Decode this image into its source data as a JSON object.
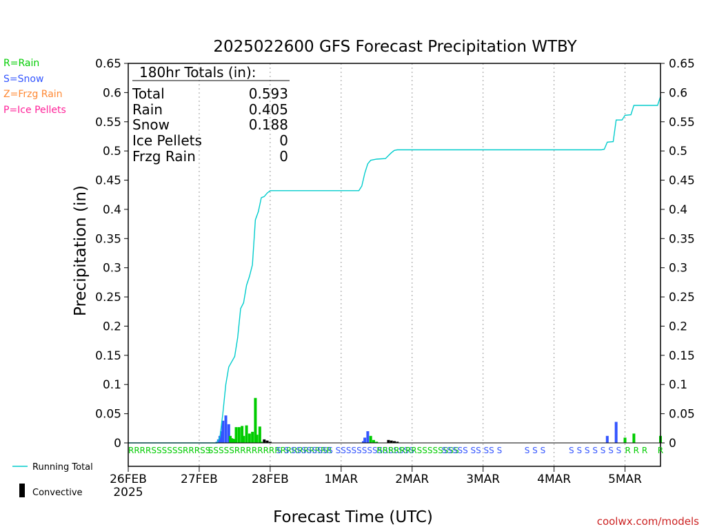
{
  "chart_data": {
    "type": "bar",
    "title": "2025022600 GFS Forecast Precipitation WTBY",
    "ylabel": "Precipitation (in)",
    "xlabel": "Forecast Time (UTC)",
    "ylim": [
      0,
      0.65
    ],
    "xlim_hours": [
      0,
      180
    ],
    "y_ticks": [
      "0",
      "0.05",
      "0.1",
      "0.15",
      "0.2",
      "0.25",
      "0.3",
      "0.35",
      "0.4",
      "0.45",
      "0.5",
      "0.55",
      "0.6",
      "0.65"
    ],
    "y_tick_values": [
      0,
      0.05,
      0.1,
      0.15,
      0.2,
      0.25,
      0.3,
      0.35,
      0.4,
      0.45,
      0.5,
      0.55,
      0.6,
      0.65
    ],
    "x_ticks": [
      {
        "label": "26FEB",
        "hour": 0
      },
      {
        "label": "27FEB",
        "hour": 24
      },
      {
        "label": "28FEB",
        "hour": 48
      },
      {
        "label": "1MAR",
        "hour": 72
      },
      {
        "label": "2MAR",
        "hour": 96
      },
      {
        "label": "3MAR",
        "hour": 120
      },
      {
        "label": "4MAR",
        "hour": 144
      },
      {
        "label": "5MAR",
        "hour": 168
      }
    ],
    "year_label": "2025",
    "grid": "dotted-vertical",
    "legend_types": [
      {
        "label": "R=Rain",
        "color": "#00cc00"
      },
      {
        "label": "S=Snow",
        "color": "#3355ff"
      },
      {
        "label": "Z=Frzg Rain",
        "color": "#ff8833"
      },
      {
        "label": "P=Ice Pellets",
        "color": "#ff2299"
      }
    ],
    "legend_series": {
      "running_total": {
        "label": "Running Total",
        "color": "#00cccc"
      },
      "convective": {
        "label": "Convective",
        "color": "#000000"
      }
    },
    "totals": {
      "header": "180hr Totals (in):",
      "rows": [
        {
          "label": "Total",
          "value": "0.593"
        },
        {
          "label": "Rain",
          "value": "0.405"
        },
        {
          "label": "Snow",
          "value": "0.188"
        },
        {
          "label": "Ice Pellets",
          "value": "0"
        },
        {
          "label": "Frzg Rain",
          "value": "0"
        }
      ]
    },
    "bars": [
      {
        "hour": 30.0,
        "value": 0.002,
        "type": "S"
      },
      {
        "hour": 30.5,
        "value": 0.006,
        "type": "S"
      },
      {
        "hour": 31.0,
        "value": 0.012,
        "type": "S"
      },
      {
        "hour": 31.5,
        "value": 0.02,
        "type": "S"
      },
      {
        "hour": 32.0,
        "value": 0.038,
        "type": "S"
      },
      {
        "hour": 33.0,
        "value": 0.047,
        "type": "S"
      },
      {
        "hour": 34.0,
        "value": 0.032,
        "type": "S"
      },
      {
        "hour": 34.5,
        "value": 0.012,
        "type": "R"
      },
      {
        "hour": 35.0,
        "value": 0.008,
        "type": "R"
      },
      {
        "hour": 35.5,
        "value": 0.007,
        "type": "R"
      },
      {
        "hour": 36.0,
        "value": 0.006,
        "type": "R"
      },
      {
        "hour": 36.5,
        "value": 0.027,
        "type": "R"
      },
      {
        "hour": 37.5,
        "value": 0.027,
        "type": "R"
      },
      {
        "hour": 38.5,
        "value": 0.029,
        "type": "R"
      },
      {
        "hour": 39.0,
        "value": 0.012,
        "type": "R"
      },
      {
        "hour": 40.0,
        "value": 0.03,
        "type": "R"
      },
      {
        "hour": 41.0,
        "value": 0.016,
        "type": "R"
      },
      {
        "hour": 42.0,
        "value": 0.019,
        "type": "R"
      },
      {
        "hour": 43.0,
        "value": 0.077,
        "type": "R"
      },
      {
        "hour": 43.5,
        "value": 0.014,
        "type": "R"
      },
      {
        "hour": 44.5,
        "value": 0.028,
        "type": "R"
      },
      {
        "hour": 45.0,
        "value": 0.002,
        "type": "R"
      },
      {
        "hour": 46.0,
        "value": 0.006,
        "type": "C"
      },
      {
        "hour": 47.0,
        "value": 0.004,
        "type": "C"
      },
      {
        "hour": 48.0,
        "value": 0.002,
        "type": "C"
      },
      {
        "hour": 79.5,
        "value": 0.003,
        "type": "S"
      },
      {
        "hour": 80.0,
        "value": 0.009,
        "type": "S"
      },
      {
        "hour": 81.0,
        "value": 0.02,
        "type": "S"
      },
      {
        "hour": 82.0,
        "value": 0.012,
        "type": "R"
      },
      {
        "hour": 83.0,
        "value": 0.005,
        "type": "R"
      },
      {
        "hour": 84.0,
        "value": 0.002,
        "type": "R"
      },
      {
        "hour": 88.0,
        "value": 0.005,
        "type": "C"
      },
      {
        "hour": 89.0,
        "value": 0.004,
        "type": "C"
      },
      {
        "hour": 90.0,
        "value": 0.003,
        "type": "C"
      },
      {
        "hour": 91.0,
        "value": 0.002,
        "type": "C"
      },
      {
        "hour": 162.0,
        "value": 0.012,
        "type": "S"
      },
      {
        "hour": 165.0,
        "value": 0.036,
        "type": "S"
      },
      {
        "hour": 168.0,
        "value": 0.009,
        "type": "R"
      },
      {
        "hour": 171.0,
        "value": 0.016,
        "type": "R"
      },
      {
        "hour": 180.0,
        "value": 0.012,
        "type": "R"
      }
    ],
    "running_total": [
      [
        0,
        0
      ],
      [
        30,
        0
      ],
      [
        31,
        0.01
      ],
      [
        32,
        0.05
      ],
      [
        33,
        0.1
      ],
      [
        34,
        0.13
      ],
      [
        36,
        0.148
      ],
      [
        37,
        0.18
      ],
      [
        38,
        0.23
      ],
      [
        39,
        0.24
      ],
      [
        40,
        0.27
      ],
      [
        41,
        0.285
      ],
      [
        42,
        0.305
      ],
      [
        43,
        0.382
      ],
      [
        44,
        0.396
      ],
      [
        45,
        0.42
      ],
      [
        46,
        0.422
      ],
      [
        47,
        0.428
      ],
      [
        48,
        0.432
      ],
      [
        78,
        0.432
      ],
      [
        79,
        0.44
      ],
      [
        80,
        0.462
      ],
      [
        81,
        0.478
      ],
      [
        82,
        0.484
      ],
      [
        84,
        0.486
      ],
      [
        87,
        0.487
      ],
      [
        88,
        0.492
      ],
      [
        89,
        0.497
      ],
      [
        90,
        0.501
      ],
      [
        91,
        0.502
      ],
      [
        160,
        0.502
      ],
      [
        161,
        0.503
      ],
      [
        162,
        0.515
      ],
      [
        164,
        0.516
      ],
      [
        165,
        0.553
      ],
      [
        167,
        0.553
      ],
      [
        168,
        0.561
      ],
      [
        170,
        0.562
      ],
      [
        171,
        0.578
      ],
      [
        179,
        0.578
      ],
      [
        180,
        0.593
      ]
    ],
    "type_markers": [
      {
        "hour": 0,
        "text": "RRRRSSSSSSRRRSS",
        "type": "R"
      },
      {
        "hour": 27,
        "text": "SSSSSRRRRRRRRRRRRRRRRR",
        "type": "R"
      },
      {
        "hour": 50,
        "text": "S S",
        "type": "S"
      },
      {
        "hour": 55,
        "text": "SSSSSSSS SSSSSSSSSSSSSSS",
        "type": "S"
      },
      {
        "hour": 84,
        "text": "RRRRRRRSSSSSSSS",
        "type": "R"
      },
      {
        "hour": 106,
        "text": "SSSSS SS SS S",
        "type": "S"
      },
      {
        "hour": 134,
        "text": "S S S",
        "type": "S"
      },
      {
        "hour": 149,
        "text": "S S S S S S S",
        "type": "S"
      },
      {
        "hour": 168,
        "text": "R R R",
        "type": "R"
      },
      {
        "hour": 179,
        "text": "R",
        "type": "R"
      }
    ],
    "credit": "coolwx.com/models"
  }
}
